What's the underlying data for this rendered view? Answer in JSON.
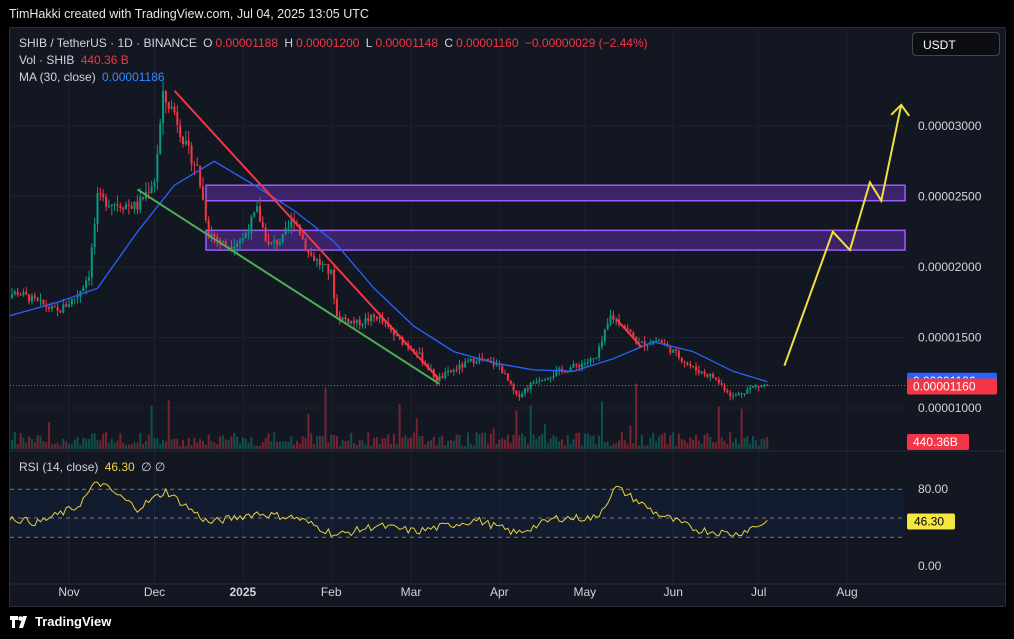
{
  "header": {
    "caption": "TimHakki created with TradingView.com, Jul 04, 2025 13:05 UTC"
  },
  "legend": {
    "symbol": "SHIB / TetherUS · 1D · BINANCE",
    "o_label": "O",
    "o_value": "0.00001188",
    "h_label": "H",
    "h_value": "0.00001200",
    "l_label": "L",
    "l_value": "0.00001148",
    "c_label": "C",
    "c_value": "0.00001160",
    "change": "−0.00000029 (−2.44%)",
    "vol_label": "Vol · SHIB",
    "vol_value": "440.36 B",
    "ma_label": "MA (30, close)",
    "ma_value": "0.00001186",
    "rsi_label": "RSI (14, close)",
    "rsi_value": "46.30",
    "rsi_icons": "∅ ∅"
  },
  "currency_button": "USDT",
  "footer": {
    "brand": "TradingView"
  },
  "chart_data": {
    "type": "candlestick",
    "symbol": "SHIB/USDT",
    "interval": "1D",
    "y_ticks": [
      1e-05,
      1.5e-05,
      2e-05,
      2.5e-05,
      3e-05
    ],
    "y_tick_labels": [
      "0.00001000",
      "0.00001500",
      "0.00002000",
      "0.00002500",
      "0.00003000"
    ],
    "x_tick_labels": [
      "Nov",
      "Dec",
      "2025",
      "Feb",
      "Mar",
      "Apr",
      "May",
      "Jun",
      "Jul",
      "Aug"
    ],
    "x_tick_dates": [
      "2024-11-01",
      "2024-12-01",
      "2025-01-01",
      "2025-02-01",
      "2025-03-01",
      "2025-04-01",
      "2025-05-01",
      "2025-06-01",
      "2025-07-01",
      "2025-08-01"
    ],
    "price_path": [
      [
        "2024-10-07",
        1.78e-05
      ],
      [
        "2024-10-14",
        1.82e-05
      ],
      [
        "2024-10-21",
        1.75e-05
      ],
      [
        "2024-10-28",
        1.68e-05
      ],
      [
        "2024-11-04",
        1.8e-05
      ],
      [
        "2024-11-08",
        1.95e-05
      ],
      [
        "2024-11-11",
        2.48e-05
      ],
      [
        "2024-11-18",
        2.45e-05
      ],
      [
        "2024-11-25",
        2.43e-05
      ],
      [
        "2024-12-01",
        2.62e-05
      ],
      [
        "2024-12-04",
        3.2e-05
      ],
      [
        "2024-12-08",
        3.1e-05
      ],
      [
        "2024-12-12",
        2.85e-05
      ],
      [
        "2024-12-16",
        2.7e-05
      ],
      [
        "2024-12-20",
        2.25e-05
      ],
      [
        "2024-12-26",
        2.15e-05
      ],
      [
        "2025-01-01",
        2.2e-05
      ],
      [
        "2025-01-06",
        2.4e-05
      ],
      [
        "2025-01-10",
        2.15e-05
      ],
      [
        "2025-01-15",
        2.2e-05
      ],
      [
        "2025-01-19",
        2.35e-05
      ],
      [
        "2025-01-24",
        2.1e-05
      ],
      [
        "2025-02-01",
        1.95e-05
      ],
      [
        "2025-02-03",
        1.65e-05
      ],
      [
        "2025-02-10",
        1.6e-05
      ],
      [
        "2025-02-17",
        1.65e-05
      ],
      [
        "2025-02-24",
        1.5e-05
      ],
      [
        "2025-03-03",
        1.4e-05
      ],
      [
        "2025-03-10",
        1.2e-05
      ],
      [
        "2025-03-17",
        1.28e-05
      ],
      [
        "2025-03-24",
        1.35e-05
      ],
      [
        "2025-04-01",
        1.3e-05
      ],
      [
        "2025-04-07",
        1.08e-05
      ],
      [
        "2025-04-14",
        1.2e-05
      ],
      [
        "2025-04-21",
        1.25e-05
      ],
      [
        "2025-04-28",
        1.3e-05
      ],
      [
        "2025-05-05",
        1.35e-05
      ],
      [
        "2025-05-10",
        1.65e-05
      ],
      [
        "2025-05-14",
        1.6e-05
      ],
      [
        "2025-05-20",
        1.45e-05
      ],
      [
        "2025-05-27",
        1.48e-05
      ],
      [
        "2025-06-01",
        1.4e-05
      ],
      [
        "2025-06-08",
        1.28e-05
      ],
      [
        "2025-06-15",
        1.22e-05
      ],
      [
        "2025-06-22",
        1.08e-05
      ],
      [
        "2025-06-29",
        1.15e-05
      ],
      [
        "2025-07-04",
        1.16e-05
      ]
    ],
    "ma30_path": [
      [
        "2024-10-07",
        1.63e-05
      ],
      [
        "2024-10-28",
        1.75e-05
      ],
      [
        "2024-11-11",
        1.85e-05
      ],
      [
        "2024-11-25",
        2.25e-05
      ],
      [
        "2024-12-08",
        2.58e-05
      ],
      [
        "2024-12-22",
        2.75e-05
      ],
      [
        "2025-01-05",
        2.58e-05
      ],
      [
        "2025-01-19",
        2.4e-05
      ],
      [
        "2025-02-02",
        2.18e-05
      ],
      [
        "2025-02-16",
        1.85e-05
      ],
      [
        "2025-03-02",
        1.58e-05
      ],
      [
        "2025-03-16",
        1.4e-05
      ],
      [
        "2025-03-30",
        1.32e-05
      ],
      [
        "2025-04-13",
        1.27e-05
      ],
      [
        "2025-04-27",
        1.26e-05
      ],
      [
        "2025-05-11",
        1.35e-05
      ],
      [
        "2025-05-25",
        1.47e-05
      ],
      [
        "2025-06-08",
        1.4e-05
      ],
      [
        "2025-06-22",
        1.26e-05
      ],
      [
        "2025-07-04",
        1.186e-05
      ]
    ],
    "last_price": 1.16e-05,
    "last_price_label": "0.00001160",
    "ma_last": 1.186e-05,
    "ma_last_label": "0.00001186",
    "volume_last_label": "440.36B",
    "resistance_zones": [
      {
        "from": 2.47e-05,
        "to": 2.58e-05
      },
      {
        "from": 2.12e-05,
        "to": 2.26e-05
      }
    ],
    "trendlines": [
      {
        "color": "#f23645",
        "from": [
          "2024-12-08",
          3.25e-05
        ],
        "to": [
          "2025-03-11",
          1.2e-05
        ]
      },
      {
        "color": "#4caf50",
        "from": [
          "2024-11-25",
          2.55e-05
        ],
        "to": [
          "2025-03-11",
          1.17e-05
        ]
      },
      {
        "color": "#f23645",
        "from": [
          "2025-05-12",
          1.63e-05
        ],
        "to": [
          "2025-05-21",
          1.43e-05
        ]
      }
    ],
    "projection_path": [
      [
        "2025-07-10",
        1.3e-05
      ],
      [
        "2025-07-27",
        2.25e-05
      ],
      [
        "2025-08-02",
        2.12e-05
      ],
      [
        "2025-08-09",
        2.6e-05
      ],
      [
        "2025-08-13",
        2.47e-05
      ],
      [
        "2025-08-20",
        3.15e-05
      ]
    ],
    "rsi": {
      "levels": [
        80,
        50,
        30
      ],
      "tick_labels": [
        "80.00",
        "0.00"
      ],
      "last": 46.3,
      "last_label": "46.30",
      "path": [
        [
          "2024-10-07",
          52
        ],
        [
          "2024-10-21",
          45
        ],
        [
          "2024-11-04",
          62
        ],
        [
          "2024-11-11",
          88
        ],
        [
          "2024-11-25",
          60
        ],
        [
          "2024-12-05",
          78
        ],
        [
          "2024-12-20",
          45
        ],
        [
          "2025-01-06",
          55
        ],
        [
          "2025-01-20",
          50
        ],
        [
          "2025-02-03",
          32
        ],
        [
          "2025-02-17",
          42
        ],
        [
          "2025-03-03",
          36
        ],
        [
          "2025-03-24",
          48
        ],
        [
          "2025-04-07",
          34
        ],
        [
          "2025-04-21",
          50
        ],
        [
          "2025-05-05",
          50
        ],
        [
          "2025-05-12",
          82
        ],
        [
          "2025-05-26",
          55
        ],
        [
          "2025-06-09",
          38
        ],
        [
          "2025-06-23",
          33
        ],
        [
          "2025-07-04",
          46.3
        ]
      ]
    }
  },
  "colors": {
    "background": "#131722",
    "up": "#089981",
    "down": "#f23645",
    "ma": "#2962ff",
    "zone": "#5b2d9e",
    "zone_border": "#9c5cff",
    "projection": "#f0e040",
    "rsi": "#e8d23a"
  }
}
